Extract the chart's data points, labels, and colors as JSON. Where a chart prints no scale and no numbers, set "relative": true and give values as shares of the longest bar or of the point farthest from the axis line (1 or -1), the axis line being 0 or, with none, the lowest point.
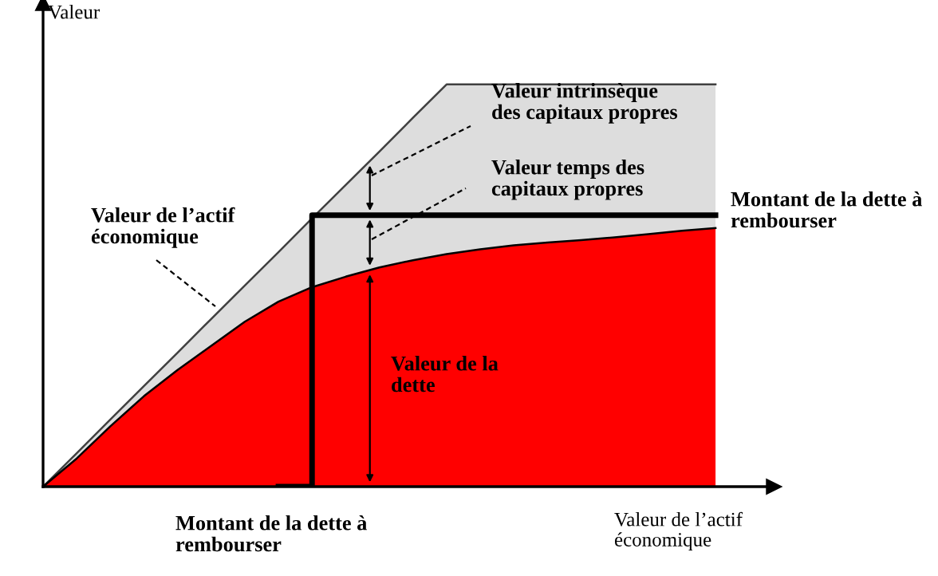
{
  "chart_data": {
    "type": "area",
    "relative": true,
    "ylabel": "Valeur",
    "xlabel": "Valeur de l’actif\néconomique",
    "legend": false,
    "categories": [
      null,
      null,
      null,
      null,
      null,
      null,
      null,
      null,
      null,
      null,
      null,
      null,
      null,
      null,
      null,
      null,
      null,
      null,
      null,
      null,
      null
    ],
    "series": [
      {
        "name": "Valeur de l’actif\néconomique",
        "color": "#dddddd",
        "values": [
          0,
          0.083,
          0.167,
          0.25,
          0.333,
          0.417,
          0.5,
          0.583,
          0.667,
          0.75,
          0.833,
          0.917,
          1,
          1,
          1,
          1,
          1,
          1,
          1,
          1,
          1
        ]
      },
      {
        "name": "Valeur de la\ndette",
        "color": "#ff0000",
        "values": [
          0,
          0.07,
          0.15,
          0.225,
          0.29,
          0.35,
          0.41,
          0.46,
          0.496,
          0.522,
          0.545,
          0.563,
          0.578,
          0.59,
          0.6,
          0.607,
          0.613,
          0.62,
          0.628,
          0.636,
          0.643
        ]
      },
      {
        "name": "Montant de la dette à\nrembourser",
        "type": "step",
        "color": "#000000",
        "values": [
          null,
          null,
          null,
          null,
          null,
          null,
          null,
          0,
          0.675,
          0.675,
          0.675,
          0.675,
          0.675,
          0.675,
          0.675,
          0.675,
          0.675,
          0.675,
          0.675,
          0.675,
          0.675
        ]
      }
    ],
    "annotations": [
      "Valeur intrinsèque\ndes capitaux propres",
      "Valeur temps des\ncapitaux propres",
      "Montant de la dette à\nrembourser"
    ]
  }
}
